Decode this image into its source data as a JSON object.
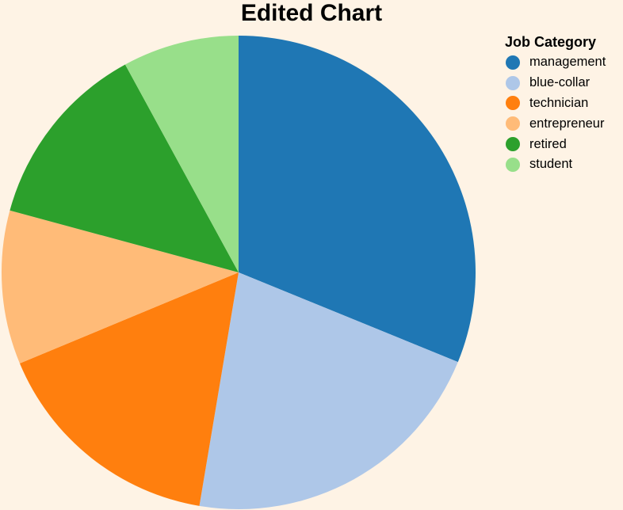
{
  "chart_data": {
    "type": "pie",
    "title": "Edited Chart",
    "legend_title": "Job Category",
    "legend_position": "top-right",
    "categories": [
      "management",
      "blue-collar",
      "technician",
      "entrepreneur",
      "retired",
      "student"
    ],
    "values": [
      31.8,
      21.9,
      16.4,
      10.7,
      13.1,
      8.1
    ],
    "colors": [
      "#1f77b4",
      "#aec7e8",
      "#ff7f0e",
      "#ffbb78",
      "#2ca02c",
      "#98df8a"
    ],
    "start_angle": "top",
    "direction": "clockwise"
  }
}
